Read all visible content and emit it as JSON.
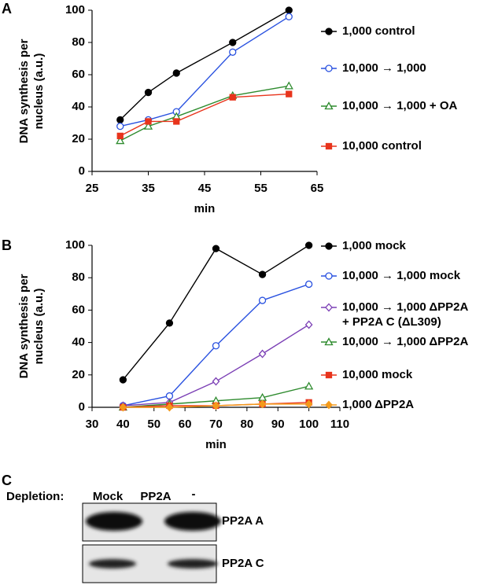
{
  "chart_data": [
    {
      "type": "line",
      "panel": "A",
      "y_label": "DNA synthesis per\nnucleus (a.u.)",
      "x_label": "min",
      "x": [
        30,
        35,
        40,
        50,
        60
      ],
      "xlim": [
        25,
        65
      ],
      "xticks": [
        25,
        35,
        45,
        55,
        65
      ],
      "ylim": [
        0,
        100
      ],
      "yticks": [
        0,
        20,
        40,
        60,
        80,
        100
      ],
      "grid": false,
      "series": [
        {
          "name": "1,000 control",
          "color": "#000000",
          "marker": "circle",
          "filled": true,
          "values": [
            32,
            49,
            61,
            80,
            100
          ]
        },
        {
          "name": "10,000 → 1,000",
          "color": "#2a52e0",
          "marker": "circle",
          "filled": false,
          "values": [
            28,
            32,
            37,
            74,
            96
          ]
        },
        {
          "name": "10,000 → 1,000 + OA",
          "color": "#2e8b2e",
          "marker": "triangle",
          "filled": false,
          "values": [
            19,
            28,
            34,
            47,
            53
          ]
        },
        {
          "name": "10,000 control",
          "color": "#e8341c",
          "marker": "square",
          "filled": true,
          "values": [
            22,
            31,
            31,
            46,
            48
          ]
        }
      ]
    },
    {
      "type": "line",
      "panel": "B",
      "y_label": "DNA synthesis per\nnucleus (a.u.)",
      "x_label": "min",
      "x": [
        40,
        55,
        70,
        85,
        100
      ],
      "xlim": [
        30,
        110
      ],
      "xticks": [
        30,
        40,
        50,
        60,
        70,
        80,
        90,
        100,
        110
      ],
      "ylim": [
        0,
        100
      ],
      "yticks": [
        0,
        20,
        40,
        60,
        80,
        100
      ],
      "grid": false,
      "series": [
        {
          "name": "1,000 mock",
          "color": "#000000",
          "marker": "circle",
          "filled": true,
          "values": [
            17,
            52,
            98,
            82,
            100
          ]
        },
        {
          "name": "10,000 → 1,000 mock",
          "color": "#2a52e0",
          "marker": "circle",
          "filled": false,
          "values": [
            1,
            7,
            38,
            66,
            76
          ]
        },
        {
          "name": "10,000 → 1,000 ΔPP2A\n+ PP2A C (ΔL309)",
          "color": "#7b3fb5",
          "marker": "diamond",
          "filled": false,
          "values": [
            1,
            3,
            16,
            33,
            51
          ]
        },
        {
          "name": "10,000 → 1,000 ΔPP2A",
          "color": "#2e8b2e",
          "marker": "triangle",
          "filled": false,
          "values": [
            0,
            2,
            4,
            6,
            13
          ]
        },
        {
          "name": "10,000 mock",
          "color": "#e8341c",
          "marker": "square",
          "filled": true,
          "values": [
            0,
            1,
            1,
            2,
            3
          ]
        },
        {
          "name": "1,000 ΔPP2A",
          "color": "#f39a1b",
          "marker": "diamond",
          "filled": true,
          "values": [
            0,
            0,
            1,
            2,
            2
          ]
        }
      ]
    }
  ],
  "blot": {
    "panel": "C",
    "row_label": "Depletion:",
    "lanes": [
      "Mock",
      "PP2A",
      "-"
    ],
    "bands": [
      "PP2A A",
      "PP2A C"
    ]
  }
}
